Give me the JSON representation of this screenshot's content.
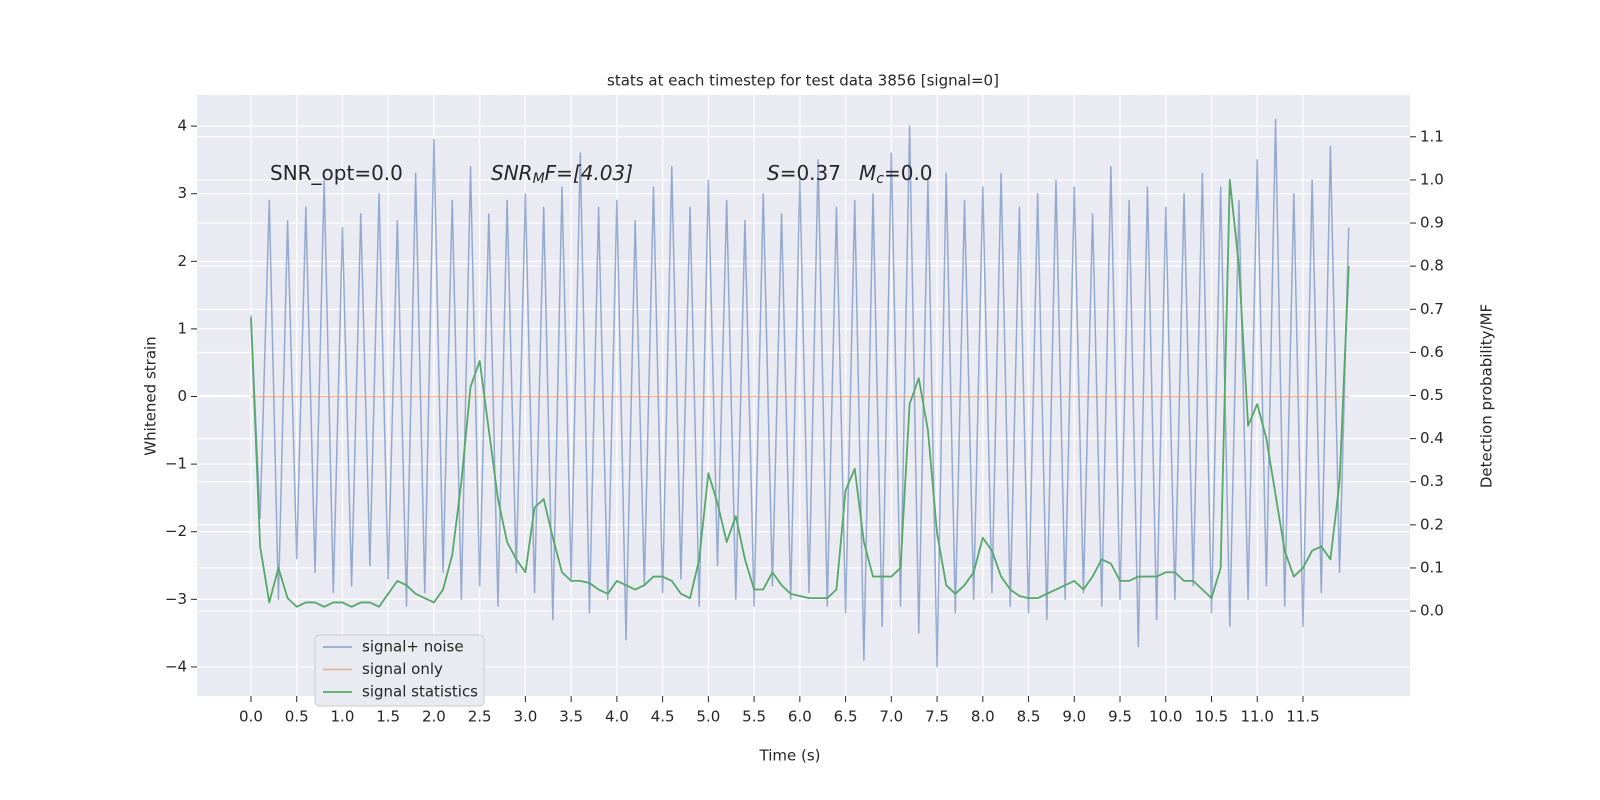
{
  "chart_data": {
    "type": "line",
    "title": "stats at each timestep for test data 3856 [signal=0]",
    "xlabel": "Time (s)",
    "ylabel": "Whitened strain",
    "y2label": "Detection probability/MF",
    "x": [
      0,
      0.1,
      0.2,
      0.3,
      0.4,
      0.5,
      0.6,
      0.7,
      0.8,
      0.9,
      1,
      1.1,
      1.2,
      1.3,
      1.4,
      1.5,
      1.6,
      1.7,
      1.8,
      1.9,
      2,
      2.1,
      2.2,
      2.3,
      2.4,
      2.5,
      2.6,
      2.7,
      2.8,
      2.9,
      3,
      3.1,
      3.2,
      3.3,
      3.4,
      3.5,
      3.6,
      3.7,
      3.8,
      3.9,
      4,
      4.1,
      4.2,
      4.3,
      4.4,
      4.5,
      4.6,
      4.7,
      4.8,
      4.9,
      5,
      5.1,
      5.2,
      5.3,
      5.4,
      5.5,
      5.6,
      5.7,
      5.8,
      5.9,
      6,
      6.1,
      6.2,
      6.3,
      6.4,
      6.5,
      6.6,
      6.7,
      6.8,
      6.9,
      7,
      7.1,
      7.2,
      7.3,
      7.4,
      7.5,
      7.6,
      7.7,
      7.8,
      7.9,
      8,
      8.1,
      8.2,
      8.3,
      8.4,
      8.5,
      8.6,
      8.7,
      8.8,
      8.9,
      9,
      9.1,
      9.2,
      9.3,
      9.4,
      9.5,
      9.6,
      9.7,
      9.8,
      9.9,
      10,
      10.1,
      10.2,
      10.3,
      10.4,
      10.5,
      10.6,
      10.7,
      10.8,
      10.9,
      11,
      11.1,
      11.2,
      11.3,
      11.4,
      11.5,
      11.6,
      11.7,
      11.8,
      11.9,
      12
    ],
    "series": [
      {
        "name": "signal+ noise",
        "color": "#4c72b0",
        "opacity": 0.55,
        "values": [
          1.2,
          -1.8,
          2.9,
          -3.0,
          2.6,
          -2.4,
          2.8,
          -2.6,
          3.2,
          -2.9,
          2.5,
          -2.8,
          2.7,
          -2.5,
          3.0,
          -2.7,
          2.6,
          -3.1,
          3.3,
          -2.9,
          3.8,
          -2.6,
          2.9,
          -3.0,
          3.4,
          -2.8,
          2.7,
          -3.1,
          2.9,
          -2.6,
          3.0,
          -2.9,
          2.8,
          -3.3,
          3.1,
          -2.7,
          3.6,
          -3.2,
          2.8,
          -3.0,
          2.9,
          -3.6,
          2.6,
          -2.8,
          3.1,
          -2.9,
          3.4,
          -2.7,
          2.8,
          -3.1,
          3.2,
          -2.5,
          2.9,
          -3.0,
          2.6,
          -3.1,
          3.0,
          -2.8,
          2.7,
          -3.0,
          3.2,
          -2.9,
          3.5,
          -3.1,
          2.8,
          -3.2,
          2.9,
          -3.9,
          3.0,
          -3.4,
          3.6,
          -3.1,
          4.0,
          -3.5,
          3.2,
          -4.0,
          3.3,
          -3.2,
          2.9,
          -3.0,
          3.1,
          -2.9,
          3.3,
          -3.1,
          2.8,
          -3.2,
          3.0,
          -3.3,
          3.2,
          -3.0,
          3.1,
          -2.9,
          2.7,
          -3.1,
          3.4,
          -3.0,
          2.9,
          -3.7,
          3.1,
          -3.3,
          2.8,
          -3.0,
          3.0,
          -2.8,
          3.3,
          -3.2,
          3.1,
          -3.4,
          2.9,
          -3.0,
          3.5,
          -2.8,
          4.1,
          -3.1,
          3.0,
          -3.4,
          3.2,
          -2.9,
          3.7,
          -2.6,
          2.5
        ]
      },
      {
        "name": "signal only",
        "color": "#dd8452",
        "opacity": 0.55,
        "values": [
          0,
          0,
          0,
          0,
          0,
          0,
          0,
          0,
          0,
          0,
          0,
          0,
          0,
          0,
          0,
          0,
          0,
          0,
          0,
          0,
          0,
          0,
          0,
          0,
          0,
          0,
          0,
          0,
          0,
          0,
          0,
          0,
          0,
          0,
          0,
          0,
          0,
          0,
          0,
          0,
          0,
          0,
          0,
          0,
          0,
          0,
          0,
          0,
          0,
          0,
          0,
          0,
          0,
          0,
          0,
          0,
          0,
          0,
          0,
          0,
          0,
          0,
          0,
          0,
          0,
          0,
          0,
          0,
          0,
          0,
          0,
          0,
          0,
          0,
          0,
          0,
          0,
          0,
          0,
          0,
          0,
          0,
          0,
          0,
          0,
          0,
          0,
          0,
          0,
          0,
          0,
          0,
          0,
          0,
          0,
          0,
          0,
          0,
          0,
          0,
          0,
          0,
          0,
          0,
          0,
          0,
          0,
          0,
          0,
          0,
          0,
          0,
          0,
          0,
          0,
          0,
          0,
          0,
          0,
          0,
          0
        ]
      },
      {
        "name": "signal statistics",
        "color": "#55a868",
        "opacity": 1,
        "axis": "y2",
        "values": [
          0.68,
          0.15,
          0.02,
          0.1,
          0.03,
          0.01,
          0.02,
          0.02,
          0.01,
          0.02,
          0.02,
          0.01,
          0.02,
          0.02,
          0.01,
          0.04,
          0.07,
          0.06,
          0.04,
          0.03,
          0.02,
          0.05,
          0.13,
          0.3,
          0.52,
          0.58,
          0.42,
          0.26,
          0.16,
          0.12,
          0.09,
          0.24,
          0.26,
          0.17,
          0.09,
          0.07,
          0.07,
          0.065,
          0.05,
          0.04,
          0.07,
          0.06,
          0.05,
          0.06,
          0.08,
          0.08,
          0.07,
          0.04,
          0.03,
          0.12,
          0.32,
          0.25,
          0.16,
          0.22,
          0.12,
          0.05,
          0.05,
          0.09,
          0.06,
          0.04,
          0.035,
          0.03,
          0.03,
          0.03,
          0.05,
          0.28,
          0.33,
          0.16,
          0.08,
          0.08,
          0.08,
          0.1,
          0.48,
          0.54,
          0.42,
          0.18,
          0.06,
          0.04,
          0.06,
          0.09,
          0.17,
          0.14,
          0.08,
          0.05,
          0.035,
          0.03,
          0.03,
          0.04,
          0.05,
          0.06,
          0.07,
          0.05,
          0.08,
          0.12,
          0.11,
          0.07,
          0.07,
          0.08,
          0.08,
          0.08,
          0.09,
          0.09,
          0.07,
          0.07,
          0.05,
          0.03,
          0.1,
          1.0,
          0.8,
          0.43,
          0.48,
          0.4,
          0.27,
          0.14,
          0.08,
          0.1,
          0.14,
          0.15,
          0.12,
          0.3,
          0.8
        ]
      }
    ],
    "xlim": [
      -0.59,
      12.67
    ],
    "ylim": [
      -4.43,
      4.46
    ],
    "y2lim": [
      -0.197,
      1.197
    ],
    "xticks": [
      {
        "value": 0,
        "label": "0.0"
      },
      {
        "value": 0.5,
        "label": "0.5"
      },
      {
        "value": 1,
        "label": "1.0"
      },
      {
        "value": 1.5,
        "label": "1.5"
      },
      {
        "value": 2,
        "label": "2.0"
      },
      {
        "value": 2.5,
        "label": "2.5"
      },
      {
        "value": 3,
        "label": "3.0"
      },
      {
        "value": 3.5,
        "label": "3.5"
      },
      {
        "value": 4,
        "label": "4.0"
      },
      {
        "value": 4.5,
        "label": "4.5"
      },
      {
        "value": 5,
        "label": "5.0"
      },
      {
        "value": 5.5,
        "label": "5.5"
      },
      {
        "value": 6,
        "label": "6.0"
      },
      {
        "value": 6.5,
        "label": "6.5"
      },
      {
        "value": 7,
        "label": "7.0"
      },
      {
        "value": 7.5,
        "label": "7.5"
      },
      {
        "value": 8,
        "label": "8.0"
      },
      {
        "value": 8.5,
        "label": "8.5"
      },
      {
        "value": 9,
        "label": "9.0"
      },
      {
        "value": 9.5,
        "label": "9.5"
      },
      {
        "value": 10,
        "label": "10.0"
      },
      {
        "value": 10.5,
        "label": "10.5"
      },
      {
        "value": 11,
        "label": "11.0"
      },
      {
        "value": 11.5,
        "label": "11.5"
      }
    ],
    "yticks": [
      {
        "value": -4,
        "label": "−4"
      },
      {
        "value": -3,
        "label": "−3"
      },
      {
        "value": -2,
        "label": "−2"
      },
      {
        "value": -1,
        "label": "−1"
      },
      0,
      1,
      2,
      3,
      4
    ],
    "y2ticks": [
      {
        "value": 0,
        "label": "0.0"
      },
      {
        "value": 0.1,
        "label": "0.1"
      },
      {
        "value": 0.2,
        "label": "0.2"
      },
      {
        "value": 0.3,
        "label": "0.3"
      },
      {
        "value": 0.4,
        "label": "0.4"
      },
      {
        "value": 0.5,
        "label": "0.5"
      },
      {
        "value": 0.6,
        "label": "0.6"
      },
      {
        "value": 0.7,
        "label": "0.7"
      },
      {
        "value": 0.8,
        "label": "0.8"
      },
      {
        "value": 0.9,
        "label": "0.9"
      },
      {
        "value": 1,
        "label": "1.0"
      },
      {
        "value": 1.1,
        "label": "1.1"
      }
    ],
    "annotations": [
      [
        {
          "text": "SNR_opt=0.0",
          "style": "normal"
        }
      ],
      [
        {
          "text": "SNR",
          "style": "italic"
        },
        {
          "text": "M",
          "style": "sub"
        },
        {
          "text": "F=[4.03]",
          "style": "italic"
        }
      ],
      [
        {
          "text": "S",
          "style": "italic"
        },
        {
          "text": "=0.37",
          "style": "normal"
        }
      ],
      [
        {
          "text": "M",
          "style": "italic"
        },
        {
          "text": "c",
          "style": "sub"
        },
        {
          "text": "=0.0",
          "style": "normal"
        }
      ]
    ],
    "grid": true,
    "legend_loc": "lower left"
  }
}
